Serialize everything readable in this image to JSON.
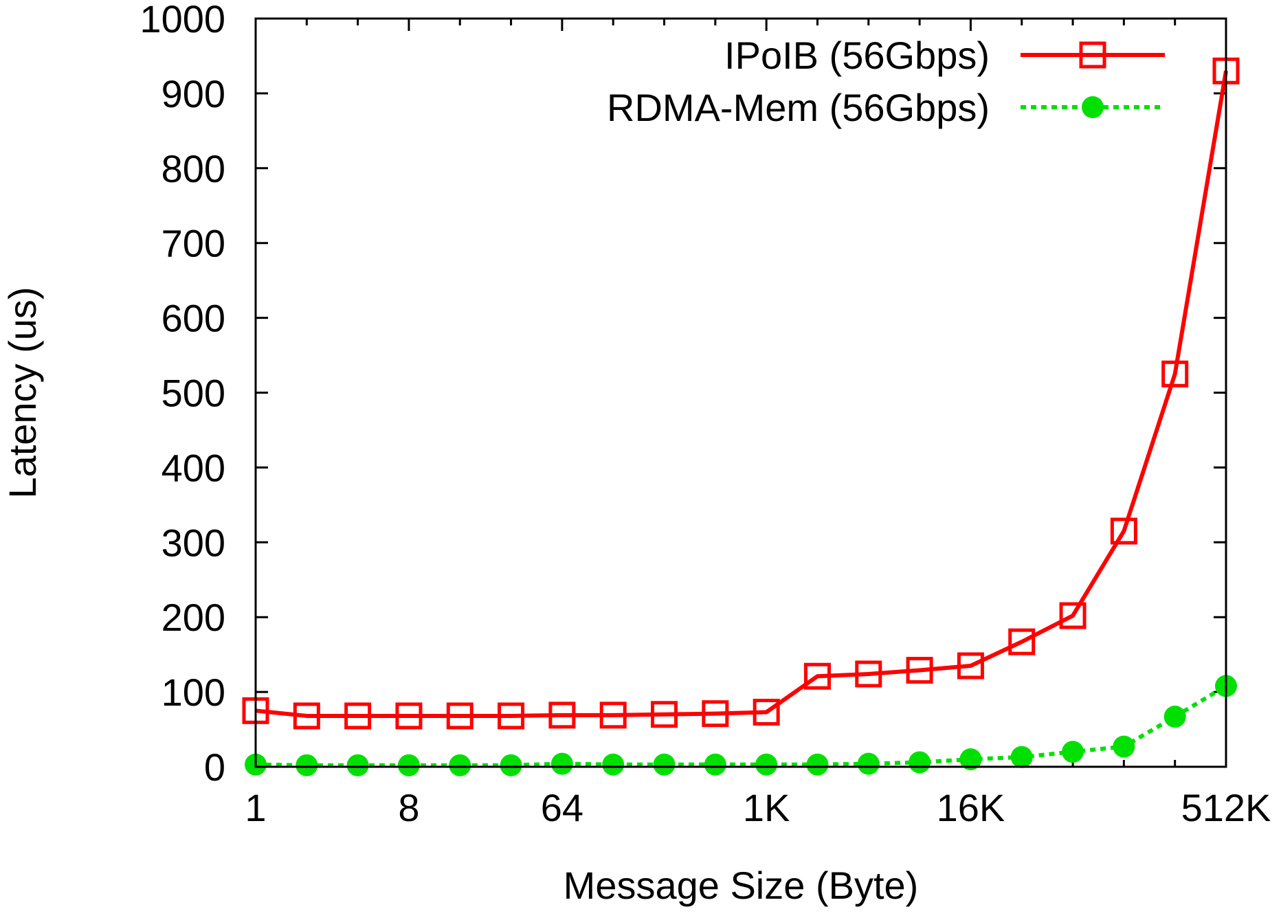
{
  "chart_data": {
    "type": "line",
    "xlabel": "Message Size (Byte)",
    "ylabel": "Latency (us)",
    "x_scale": "log2",
    "x": [
      "1",
      "2",
      "4",
      "8",
      "16",
      "32",
      "64",
      "128",
      "256",
      "512",
      "1K",
      "2K",
      "4K",
      "8K",
      "16K",
      "32K",
      "64K",
      "128K",
      "256K",
      "512K"
    ],
    "x_tick_labels": [
      "1",
      "8",
      "64",
      "1K",
      "16K",
      "512K"
    ],
    "ylim": [
      0,
      1000
    ],
    "y_ticks": [
      0,
      100,
      200,
      300,
      400,
      500,
      600,
      700,
      800,
      900,
      1000
    ],
    "grid": false,
    "legend_position": "top-right",
    "series": [
      {
        "name": "IPoIB (56Gbps)",
        "color": "#ff0000",
        "marker": "open-square",
        "line_style": "solid",
        "values": [
          75,
          68,
          68,
          68,
          68,
          68,
          69,
          69,
          70,
          71,
          73,
          121,
          124,
          129,
          135,
          167,
          202,
          315,
          525,
          930
        ]
      },
      {
        "name": "RDMA-Mem (56Gbps)",
        "color": "#00e000",
        "marker": "filled-circle",
        "line_style": "dotted",
        "values": [
          3,
          2,
          2,
          2,
          2,
          2,
          4,
          3,
          3,
          3,
          3,
          3,
          4,
          6,
          10,
          13,
          20,
          27,
          67,
          108
        ]
      }
    ]
  }
}
